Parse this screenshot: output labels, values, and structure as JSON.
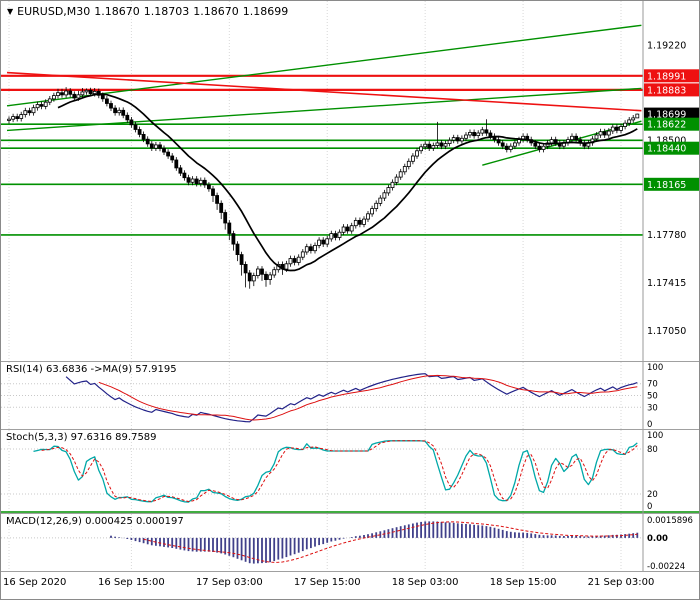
{
  "header": {
    "symbol": "EURUSD,M30",
    "open": "1.18670",
    "high": "1.18703",
    "low": "1.18670",
    "close": "1.18699"
  },
  "icons": {
    "symbol_dropdown": "▼"
  },
  "chart_data": {
    "type": "candlestick",
    "title": "EURUSD,M30",
    "timeframe": "M30",
    "x_labels": [
      "16 Sep 2020",
      "16 Sep 15:00",
      "17 Sep 03:00",
      "17 Sep 15:00",
      "18 Sep 03:00",
      "18 Sep 15:00",
      "21 Sep 03:00"
    ],
    "x_label_bars": [
      0,
      30,
      54,
      78,
      102,
      126,
      150
    ],
    "price_divisor": 100000,
    "price_axis": {
      "min": 1.1682,
      "max": 1.1956,
      "plain_labels": [
        "1.19220",
        "1.18500",
        "1.17780",
        "1.17415",
        "1.17050"
      ]
    },
    "badges": [
      {
        "text": "1.18991",
        "color": "#ee1111"
      },
      {
        "text": "1.18883",
        "color": "#ee1111"
      },
      {
        "text": "1.18699",
        "color": "#000000"
      },
      {
        "text": "1.18622",
        "color": "#009000"
      },
      {
        "text": "1.18440",
        "color": "#009000"
      },
      {
        "text": "1.18165",
        "color": "#009000"
      }
    ],
    "hlines": [
      {
        "price": 1.18991,
        "color": "#ee1111",
        "width": 2.2
      },
      {
        "price": 1.18883,
        "color": "#ee1111",
        "width": 2.2
      },
      {
        "price": 1.18622,
        "color": "#009000",
        "width": 1.6
      },
      {
        "price": 1.185,
        "color": "#009000",
        "width": 1.6
      },
      {
        "price": 1.1844,
        "color": "#009000",
        "width": 1.6
      },
      {
        "price": 1.18165,
        "color": "#009000",
        "width": 1.6
      },
      {
        "price": 1.1778,
        "color": "#009000",
        "width": 1.6
      }
    ],
    "trendlines": [
      {
        "x1_bar": -0.5,
        "p1": 1.18762,
        "x2_bar": 155,
        "p2": 1.19375,
        "color": "#009000",
        "width": 1.4
      },
      {
        "x1_bar": -0.5,
        "p1": 1.18575,
        "x2_bar": 155,
        "p2": 1.18895,
        "color": "#009000",
        "width": 1.4
      },
      {
        "x1_bar": 116,
        "p1": 1.1831,
        "x2_bar": 155,
        "p2": 1.18645,
        "color": "#009000",
        "width": 1.4
      },
      {
        "x1_bar": -0.5,
        "p1": 1.19015,
        "x2_bar": 155,
        "p2": 1.18725,
        "color": "#ee1111",
        "width": 1.6
      }
    ],
    "ma_period": 13,
    "candles_ohlc": [
      [
        118650,
        118682,
        118628,
        118660
      ],
      [
        118660,
        118702,
        118638,
        118680
      ],
      [
        118680,
        118702,
        118643,
        118665
      ],
      [
        118665,
        118717,
        118643,
        118695
      ],
      [
        118695,
        118747,
        118673,
        118725
      ],
      [
        118725,
        118747,
        118688,
        118710
      ],
      [
        118710,
        118770,
        118688,
        118748
      ],
      [
        118748,
        118794,
        118726,
        118772
      ],
      [
        118772,
        118794,
        118736,
        118758
      ],
      [
        118758,
        118812,
        118736,
        118790
      ],
      [
        118790,
        118837,
        118768,
        118815
      ],
      [
        118815,
        118862,
        118793,
        118840
      ],
      [
        118840,
        118892,
        118818,
        118862
      ],
      [
        118862,
        118892,
        118823,
        118845
      ],
      [
        118845,
        118905,
        118823,
        118875
      ],
      [
        118875,
        118897,
        118828,
        118850
      ],
      [
        118850,
        118872,
        118800,
        118822
      ],
      [
        118822,
        118876,
        118800,
        118846
      ],
      [
        118846,
        118898,
        118824,
        118868
      ],
      [
        118868,
        118895,
        118846,
        118880
      ],
      [
        118880,
        118900,
        118833,
        118855
      ],
      [
        118855,
        118898,
        118833,
        118872
      ],
      [
        118872,
        118894,
        118820,
        118842
      ],
      [
        118842,
        118864,
        118793,
        118815
      ],
      [
        118815,
        118837,
        118758,
        118780
      ],
      [
        118780,
        118802,
        118723,
        118745
      ],
      [
        118745,
        118767,
        118688,
        118710
      ],
      [
        118710,
        118750,
        118688,
        118728
      ],
      [
        118728,
        118750,
        118668,
        118690
      ],
      [
        118690,
        118712,
        118633,
        118655
      ],
      [
        118655,
        118677,
        118596,
        118618
      ],
      [
        118618,
        118640,
        118560,
        118582
      ],
      [
        118582,
        118604,
        118523,
        118545
      ],
      [
        118545,
        118567,
        118486,
        118508
      ],
      [
        118508,
        118530,
        118450,
        118472
      ],
      [
        118472,
        118494,
        118418,
        118440
      ],
      [
        118440,
        118487,
        118418,
        118465
      ],
      [
        118465,
        118487,
        118416,
        118438
      ],
      [
        118438,
        118460,
        118388,
        118410
      ],
      [
        118410,
        118432,
        118358,
        118380
      ],
      [
        118380,
        118402,
        118328,
        118350
      ],
      [
        118350,
        118372,
        118268,
        118290
      ],
      [
        118290,
        118312,
        118228,
        118250
      ],
      [
        118250,
        118272,
        118193,
        118215
      ],
      [
        118215,
        118237,
        118158,
        118180
      ],
      [
        118180,
        118227,
        118158,
        118205
      ],
      [
        118205,
        118227,
        118148,
        118170
      ],
      [
        118170,
        118217,
        118148,
        118195
      ],
      [
        118195,
        118217,
        118138,
        118160
      ],
      [
        118160,
        118182,
        118108,
        118130
      ],
      [
        118130,
        118152,
        118030,
        118080
      ],
      [
        118080,
        118102,
        117970,
        118020
      ],
      [
        118020,
        118042,
        117900,
        117950
      ],
      [
        117950,
        117972,
        117820,
        117870
      ],
      [
        117870,
        117892,
        117740,
        117790
      ],
      [
        117790,
        117812,
        117660,
        117710
      ],
      [
        117710,
        117732,
        117580,
        117630
      ],
      [
        117630,
        117652,
        117470,
        117555
      ],
      [
        117555,
        117577,
        117380,
        117490
      ],
      [
        117490,
        117512,
        117370,
        117430
      ],
      [
        117430,
        117492,
        117390,
        117470
      ],
      [
        117470,
        117542,
        117448,
        117520
      ],
      [
        117520,
        117542,
        117430,
        117480
      ],
      [
        117480,
        117502,
        117385,
        117440
      ],
      [
        117440,
        117497,
        117400,
        117475
      ],
      [
        117475,
        117537,
        117453,
        117515
      ],
      [
        117515,
        117577,
        117493,
        117555
      ],
      [
        117555,
        117577,
        117475,
        117520
      ],
      [
        117520,
        117582,
        117498,
        117560
      ],
      [
        117560,
        117622,
        117538,
        117600
      ],
      [
        117600,
        117622,
        117548,
        117570
      ],
      [
        117570,
        117632,
        117548,
        117610
      ],
      [
        117610,
        117672,
        117588,
        117650
      ],
      [
        117650,
        117712,
        117628,
        117690
      ],
      [
        117690,
        117712,
        117638,
        117660
      ],
      [
        117660,
        117722,
        117638,
        117700
      ],
      [
        117700,
        117762,
        117678,
        117740
      ],
      [
        117740,
        117762,
        117688,
        117710
      ],
      [
        117710,
        117772,
        117688,
        117750
      ],
      [
        117750,
        117812,
        117728,
        117790
      ],
      [
        117790,
        117812,
        117738,
        117760
      ],
      [
        117760,
        117822,
        117738,
        117800
      ],
      [
        117800,
        117862,
        117778,
        117840
      ],
      [
        117840,
        117862,
        117788,
        117810
      ],
      [
        117810,
        117872,
        117788,
        117850
      ],
      [
        117850,
        117912,
        117828,
        117890
      ],
      [
        117890,
        117912,
        117838,
        117860
      ],
      [
        117860,
        117922,
        117838,
        117900
      ],
      [
        117900,
        117962,
        117878,
        117940
      ],
      [
        117940,
        118002,
        117918,
        117980
      ],
      [
        117980,
        118042,
        117958,
        118020
      ],
      [
        118020,
        118082,
        117998,
        118060
      ],
      [
        118060,
        118122,
        118038,
        118100
      ],
      [
        118100,
        118162,
        118078,
        118140
      ],
      [
        118140,
        118202,
        118118,
        118180
      ],
      [
        118180,
        118242,
        118158,
        118220
      ],
      [
        118220,
        118282,
        118198,
        118260
      ],
      [
        118260,
        118322,
        118238,
        118300
      ],
      [
        118300,
        118362,
        118278,
        118340
      ],
      [
        118340,
        118402,
        118318,
        118380
      ],
      [
        118380,
        118442,
        118358,
        118420
      ],
      [
        118420,
        118472,
        118398,
        118450
      ],
      [
        118450,
        118492,
        118428,
        118470
      ],
      [
        118470,
        118492,
        118418,
        118440
      ],
      [
        118440,
        118482,
        118418,
        118460
      ],
      [
        118460,
        118640,
        118438,
        118480
      ],
      [
        118480,
        118502,
        118433,
        118455
      ],
      [
        118455,
        118497,
        118433,
        118475
      ],
      [
        118475,
        118522,
        118453,
        118500
      ],
      [
        118500,
        118542,
        118478,
        118520
      ],
      [
        118520,
        118542,
        118473,
        118495
      ],
      [
        118495,
        118537,
        118473,
        118515
      ],
      [
        118515,
        118562,
        118493,
        118540
      ],
      [
        118540,
        118582,
        118518,
        118560
      ],
      [
        118560,
        118582,
        118513,
        118535
      ],
      [
        118535,
        118577,
        118513,
        118555
      ],
      [
        118555,
        118602,
        118533,
        118580
      ],
      [
        118580,
        118660,
        118533,
        118555
      ],
      [
        118555,
        118577,
        118508,
        118530
      ],
      [
        118530,
        118552,
        118483,
        118505
      ],
      [
        118505,
        118527,
        118458,
        118480
      ],
      [
        118480,
        118502,
        118433,
        118455
      ],
      [
        118455,
        118477,
        118408,
        118430
      ],
      [
        118430,
        118477,
        118408,
        118455
      ],
      [
        118455,
        118502,
        118433,
        118480
      ],
      [
        118480,
        118527,
        118458,
        118505
      ],
      [
        118505,
        118552,
        118483,
        118530
      ],
      [
        118530,
        118552,
        118483,
        118505
      ],
      [
        118505,
        118527,
        118458,
        118480
      ],
      [
        118480,
        118502,
        118433,
        118455
      ],
      [
        118455,
        118477,
        118408,
        118430
      ],
      [
        118430,
        118477,
        118408,
        118455
      ],
      [
        118455,
        118502,
        118433,
        118480
      ],
      [
        118480,
        118527,
        118458,
        118505
      ],
      [
        118505,
        118527,
        118458,
        118480
      ],
      [
        118480,
        118502,
        118433,
        118455
      ],
      [
        118455,
        118502,
        118433,
        118480
      ],
      [
        118480,
        118527,
        118458,
        118505
      ],
      [
        118505,
        118552,
        118483,
        118530
      ],
      [
        118530,
        118552,
        118483,
        118505
      ],
      [
        118505,
        118527,
        118458,
        118480
      ],
      [
        118480,
        118502,
        118433,
        118455
      ],
      [
        118455,
        118502,
        118433,
        118480
      ],
      [
        118480,
        118532,
        118458,
        118510
      ],
      [
        118510,
        118562,
        118488,
        118540
      ],
      [
        118540,
        118587,
        118518,
        118565
      ],
      [
        118565,
        118587,
        118518,
        118540
      ],
      [
        118540,
        118592,
        118518,
        118570
      ],
      [
        118570,
        118622,
        118548,
        118600
      ],
      [
        118600,
        118622,
        118553,
        118575
      ],
      [
        118575,
        118627,
        118553,
        118605
      ],
      [
        118605,
        118652,
        118583,
        118630
      ],
      [
        118630,
        118677,
        118608,
        118655
      ],
      [
        118655,
        118692,
        118633,
        118670
      ],
      [
        118670,
        118703,
        118670,
        118699
      ]
    ],
    "indicators": {
      "rsi": {
        "label": "RSI(14) 63.6836 ->MA(9) 57.9195",
        "period": 14,
        "ma_period": 9,
        "levels": [
          70,
          50,
          30
        ],
        "scale_labels": [
          "100",
          "70",
          "50",
          "30",
          "0"
        ],
        "line_color": "#222288",
        "ma_color": "#dd1111"
      },
      "stoch": {
        "label": "Stoch(5,3,3) 97.6316 89.7589",
        "k": 5,
        "slowing": 3,
        "d": 3,
        "levels": [
          80,
          20
        ],
        "scale_labels": [
          "100",
          "80",
          "20",
          "0"
        ],
        "k_color": "#00a8a8",
        "d_color": "#dd1111"
      },
      "macd": {
        "label": "MACD(12,26,9) 0.000425 0.000197",
        "fast": 12,
        "slow": 26,
        "signal": 9,
        "scale_labels": [
          "0.0015896",
          "0.00",
          "-0.00224"
        ],
        "hist_color": "#40408a",
        "signal_color": "#dd1111"
      }
    }
  }
}
